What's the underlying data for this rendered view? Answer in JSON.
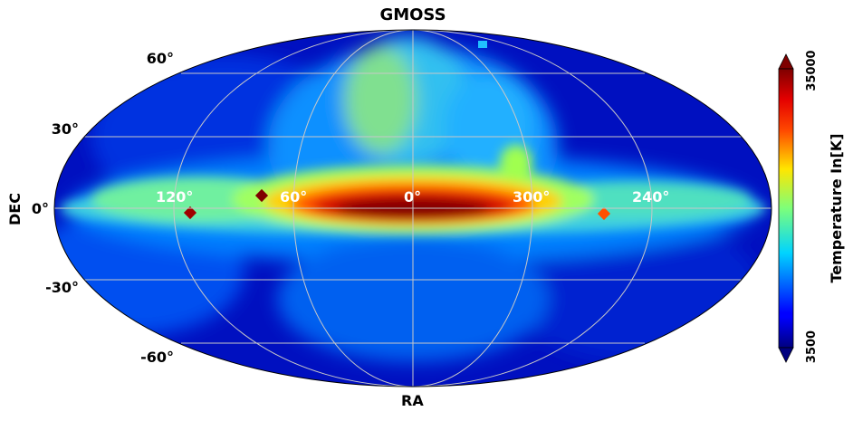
{
  "title": "GMOSS",
  "axes": {
    "xlabel": "RA",
    "ylabel": "DEC",
    "dec_ticks": [
      "60°",
      "30°",
      "0°",
      "-30°",
      "-60°"
    ],
    "ra_ticks": [
      "120°",
      "60°",
      "0°",
      "300°",
      "240°"
    ]
  },
  "colorbar": {
    "label": "Temperature In[K]",
    "min_label": "3500",
    "max_label": "35000",
    "min": 3500,
    "max": 35000,
    "colormap": "jet",
    "extend": "both"
  },
  "colors": {
    "grid": "#c8c8c8",
    "background_sky": "#0a1ea0",
    "galactic_plane_peak": "#8b0000"
  }
}
